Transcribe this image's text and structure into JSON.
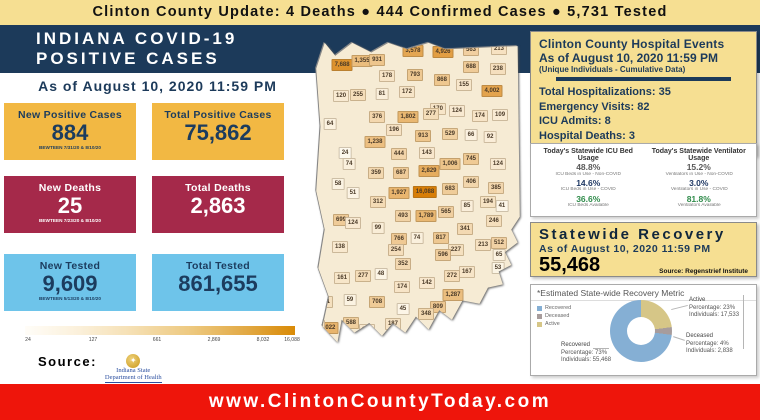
{
  "banner": {
    "text": "Clinton County Update: 4 Deaths ● 444 Confirmed Cases  ● 5,731 Tested"
  },
  "header": {
    "title_line1": "INDIANA COVID-19",
    "title_line2": "POSITIVE CASES",
    "as_of": "As of August 10, 2020 11:59 PM"
  },
  "stats": [
    {
      "label": "New Positive Cases",
      "value": "884",
      "note": "BEWTEEN 7/31/20 & 8/10/20"
    },
    {
      "label": "Total Positive Cases",
      "value": "75,862",
      "note": ""
    },
    {
      "label": "New Deaths",
      "value": "25",
      "note": "BEWTEEN 7/23/20 & 8/10/20"
    },
    {
      "label": "Total Deaths",
      "value": "2,863",
      "note": ""
    },
    {
      "label": "New Tested",
      "value": "9,609",
      "note": "BEWTEEN 5/13/20 & 8/10/20"
    },
    {
      "label": "Total Tested",
      "value": "861,655",
      "note": ""
    }
  ],
  "legend": {
    "ticks": [
      "24",
      "127",
      "661",
      "2,869",
      "8,032",
      "16,088"
    ]
  },
  "source": {
    "label": "Source:",
    "org_line1": "Indiana State",
    "org_line2": "Department of Health"
  },
  "hospital": {
    "title_line1": "Clinton County Hospital Events",
    "title_line2": "As of August 10, 2020 11:59 PM",
    "title_line3": "(Unique Individuals - Cumulative Data)",
    "items": [
      "Total Hospitalizations: 35",
      "Emergency Visits: 82",
      "ICU Admits: 8",
      "Hospital Deaths: 3"
    ],
    "source": "Source: Regenstrief Institute"
  },
  "icu_panel": {
    "left": {
      "title": "Today's Statewide ICU Bed Usage",
      "items": [
        {
          "value": "48.8%",
          "label": "ICU Beds in Use - Non-COVID",
          "color": "#595959"
        },
        {
          "value": "14.6%",
          "label": "ICU Beds in Use - COVID",
          "color": "#1F3864"
        },
        {
          "value": "36.6%",
          "label": "ICU Beds Available",
          "color": "#2F8B4A"
        }
      ]
    },
    "right": {
      "title": "Today's Statewide Ventilator Usage",
      "items": [
        {
          "value": "15.2%",
          "label": "Ventilators in Use - Non-COVID",
          "color": "#595959"
        },
        {
          "value": "3.0%",
          "label": "Ventilators in Use - COVID",
          "color": "#1F3864"
        },
        {
          "value": "81.8%",
          "label": "Ventilators Available",
          "color": "#2F8B4A"
        }
      ]
    }
  },
  "recovery": {
    "title": "Statewide Recovery",
    "as_of": "As of August 10, 2020 11:59 PM",
    "value": "55,468",
    "source": "Source: Regenstrief Institute"
  },
  "footer": {
    "url": "www.ClintonCountyToday.com"
  },
  "palette": {
    "banner_yellow": "#F6DF92",
    "navy": "#1C3A5A",
    "amber_box": "#F2B843",
    "maroon_box": "#A5294A",
    "sky_box": "#6EC4EA",
    "footer_red": "#EE150B",
    "map_low": "#FDF9EE",
    "map_high": "#D97E06"
  },
  "chart_data": [
    {
      "type": "pie",
      "donut": true,
      "title": "*Estimated State-wide Recovery Metric",
      "slices": [
        {
          "label": "Active",
          "pct": 23,
          "individuals": "17,533",
          "color": "#D6C687"
        },
        {
          "label": "Deceased",
          "pct": 4,
          "individuals": "2,838",
          "color": "#A79C9C"
        },
        {
          "label": "Recovered",
          "pct": 73,
          "individuals": "55,468",
          "color": "#85AFD4"
        }
      ],
      "legend": [
        {
          "label": "Recovered",
          "color": "#85AFD4"
        },
        {
          "label": "Deceased",
          "color": "#A79C9C"
        },
        {
          "label": "Active",
          "color": "#D6C687"
        }
      ],
      "legend_position": "top-left",
      "callouts": [
        {
          "title": "Active",
          "line1": "Percentage: 23%",
          "line2": "Individuals: 17,533"
        },
        {
          "title": "Deceased",
          "line1": "Percentage: 4%",
          "line2": "Individuals: 2,838"
        },
        {
          "title": "Recovered",
          "line1": "Percentage: 73%",
          "line2": "Individuals: 55,468"
        }
      ]
    },
    {
      "type": "heatmap",
      "title": "Indiana COVID-19 positive cases by county (choropleth)",
      "scale_ticks": [
        "24",
        "127",
        "661",
        "2,869",
        "8,032",
        "16,088"
      ],
      "scale_range": [
        24,
        16088
      ],
      "counties": [
        [
          "7,688",
          14.2,
          10.9
        ],
        [
          "1,355",
          23.6,
          9.6
        ],
        [
          "931",
          30.7,
          9.3
        ],
        [
          "3,578",
          47.6,
          6.5
        ],
        [
          "4,926",
          61.8,
          6.8
        ],
        [
          "563",
          75,
          6.2
        ],
        [
          "213",
          88.2,
          5.9
        ],
        [
          "178",
          35.4,
          14.3
        ],
        [
          "793",
          48.6,
          14
        ],
        [
          "688",
          75,
          11.5
        ],
        [
          "238",
          87.7,
          12.1
        ],
        [
          "868",
          61.3,
          15.5
        ],
        [
          "155",
          71.7,
          17.1
        ],
        [
          "4,002",
          84.9,
          18.9
        ],
        [
          "120",
          13.7,
          20.5
        ],
        [
          "255",
          21.7,
          20.2
        ],
        [
          "81",
          33,
          19.9
        ],
        [
          "172",
          44.8,
          19.3
        ],
        [
          "170",
          59.4,
          24.5
        ],
        [
          "124",
          68.4,
          25.2
        ],
        [
          "174",
          79.2,
          26.7
        ],
        [
          "109",
          88.7,
          26.4
        ],
        [
          "64",
          8.5,
          29.2
        ],
        [
          "376",
          30.7,
          27
        ],
        [
          "1,802",
          45.3,
          27
        ],
        [
          "277",
          56.1,
          26.1
        ],
        [
          "196",
          38.7,
          31.1
        ],
        [
          "913",
          52.4,
          32.9
        ],
        [
          "529",
          65.1,
          32.3
        ],
        [
          "66",
          75,
          32.6
        ],
        [
          "92",
          84,
          33.2
        ],
        [
          "1,238",
          29.7,
          34.8
        ],
        [
          "24",
          15.6,
          38.2
        ],
        [
          "74",
          17.5,
          41.6
        ],
        [
          "444",
          41,
          38.5
        ],
        [
          "143",
          54.2,
          38.2
        ],
        [
          "1,006",
          65.1,
          41.6
        ],
        [
          "745",
          75,
          40.1
        ],
        [
          "124",
          87.7,
          41.6
        ],
        [
          "359",
          30.2,
          44.4
        ],
        [
          "687",
          42,
          44.4
        ],
        [
          "2,829",
          55.2,
          43.8
        ],
        [
          "406",
          75,
          47.2
        ],
        [
          "385",
          86.8,
          49.1
        ],
        [
          "58",
          12.3,
          47.8
        ],
        [
          "51",
          19.3,
          50.6
        ],
        [
          "1,927",
          41,
          50.6
        ],
        [
          "16,088",
          53.3,
          50.3
        ],
        [
          "683",
          65.1,
          49.4
        ],
        [
          "194",
          83,
          53.4
        ],
        [
          "41",
          89.6,
          54.7
        ],
        [
          "312",
          31.1,
          53.4
        ],
        [
          "85",
          73.1,
          54.7
        ],
        [
          "493",
          42.9,
          57.8
        ],
        [
          "1,789",
          53.8,
          57.8
        ],
        [
          "565",
          63.2,
          56.5
        ],
        [
          "246",
          85.8,
          59.3
        ],
        [
          "699",
          13.7,
          59
        ],
        [
          "124",
          19.3,
          59.9
        ],
        [
          "99",
          31.1,
          61.5
        ],
        [
          "341",
          72.2,
          61.8
        ],
        [
          "766",
          41,
          64.9
        ],
        [
          "74",
          49.5,
          64.6
        ],
        [
          "817",
          60.8,
          64.6
        ],
        [
          "138",
          13.2,
          67.4
        ],
        [
          "254",
          39.6,
          68.3
        ],
        [
          "213",
          80.7,
          66.8
        ],
        [
          "512",
          88.2,
          66.1
        ],
        [
          "227",
          67.9,
          68.3
        ],
        [
          "596",
          61.8,
          69.9
        ],
        [
          "65",
          88.2,
          69.9
        ],
        [
          "352",
          42.9,
          72.7
        ],
        [
          "167",
          73.1,
          75.2
        ],
        [
          "53",
          87.7,
          73.9
        ],
        [
          "161",
          14.2,
          77
        ],
        [
          "277",
          24.1,
          76.4
        ],
        [
          "48",
          32.5,
          75.8
        ],
        [
          "272",
          66,
          76.4
        ],
        [
          "142",
          54.2,
          78.6
        ],
        [
          "174",
          42.5,
          79.8
        ],
        [
          "231",
          6.1,
          84.5
        ],
        [
          "59",
          17.9,
          83.9
        ],
        [
          "708",
          30.7,
          84.5
        ],
        [
          "1,287",
          66.5,
          82.3
        ],
        [
          "809",
          59.4,
          86
        ],
        [
          "45",
          42.9,
          86.6
        ],
        [
          "348",
          53.8,
          88.2
        ],
        [
          "2,022",
          7.5,
          92.5
        ],
        [
          "588",
          18.4,
          91
        ],
        [
          "187",
          38.2,
          91.3
        ],
        [
          "137",
          25.9,
          93.2
        ],
        [
          "179",
          2.5,
          92
        ]
      ]
    }
  ]
}
